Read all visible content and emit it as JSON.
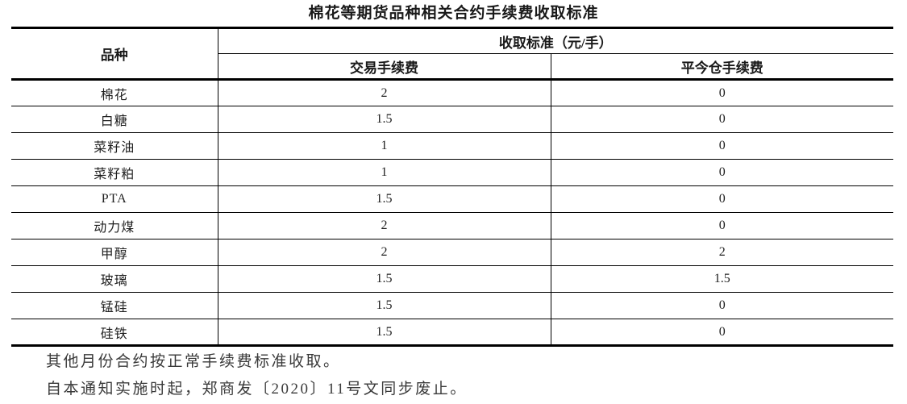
{
  "title": "棉花等期货品种相关合约手续费收取标准",
  "table": {
    "header": {
      "variety": "品种",
      "standard": "收取标准（元/手）",
      "trade_fee": "交易手续费",
      "close_today_fee": "平今仓手续费"
    },
    "rows": [
      {
        "variety": "棉花",
        "trade_fee": "2",
        "close_today_fee": "0"
      },
      {
        "variety": "白糖",
        "trade_fee": "1.5",
        "close_today_fee": "0"
      },
      {
        "variety": "菜籽油",
        "trade_fee": "1",
        "close_today_fee": "0"
      },
      {
        "variety": "菜籽粕",
        "trade_fee": "1",
        "close_today_fee": "0"
      },
      {
        "variety": "PTA",
        "trade_fee": "1.5",
        "close_today_fee": "0"
      },
      {
        "variety": "动力煤",
        "trade_fee": "2",
        "close_today_fee": "0"
      },
      {
        "variety": "甲醇",
        "trade_fee": "2",
        "close_today_fee": "2"
      },
      {
        "variety": "玻璃",
        "trade_fee": "1.5",
        "close_today_fee": "1.5"
      },
      {
        "variety": "锰硅",
        "trade_fee": "1.5",
        "close_today_fee": "0"
      },
      {
        "variety": "硅铁",
        "trade_fee": "1.5",
        "close_today_fee": "0"
      }
    ]
  },
  "notes": {
    "line1": "其他月份合约按正常手续费标准收取。",
    "line2": "自本通知实施时起，郑商发〔2020〕11号文同步废止。"
  },
  "colors": {
    "background": "#ffffff",
    "text": "#1a1a1a",
    "border": "#000000"
  },
  "chart_data": {
    "type": "table",
    "title": "棉花等期货品种相关合约手续费收取标准",
    "columns": [
      "品种",
      "交易手续费",
      "平今仓手续费"
    ],
    "unit": "元/手",
    "rows": [
      [
        "棉花",
        2,
        0
      ],
      [
        "白糖",
        1.5,
        0
      ],
      [
        "菜籽油",
        1,
        0
      ],
      [
        "菜籽粕",
        1,
        0
      ],
      [
        "PTA",
        1.5,
        0
      ],
      [
        "动力煤",
        2,
        0
      ],
      [
        "甲醇",
        2,
        2
      ],
      [
        "玻璃",
        1.5,
        1.5
      ],
      [
        "锰硅",
        1.5,
        0
      ],
      [
        "硅铁",
        1.5,
        0
      ]
    ]
  }
}
